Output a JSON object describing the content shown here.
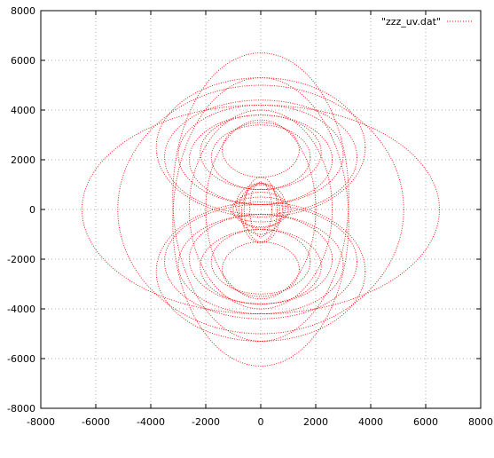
{
  "chart_data": {
    "type": "scatter",
    "title": "",
    "xlabel": "",
    "ylabel": "",
    "xlim": [
      -8000,
      8000
    ],
    "ylim": [
      -8000,
      8000
    ],
    "x_ticks": [
      -8000,
      -6000,
      -4000,
      -2000,
      0,
      2000,
      4000,
      6000,
      8000
    ],
    "y_ticks": [
      -8000,
      -6000,
      -4000,
      -2000,
      0,
      2000,
      4000,
      6000,
      8000
    ],
    "x_tick_labels": [
      "-8000",
      "-6000",
      "-4000",
      "-2000",
      "0",
      "2000",
      "4000",
      "6000",
      "8000"
    ],
    "y_tick_labels": [
      "-8000",
      "-6000",
      "-4000",
      "-2000",
      "0",
      "2000",
      "4000",
      "6000",
      "8000"
    ],
    "grid": true,
    "legend_position": "top-right",
    "series": [
      {
        "name": "\"zzz_uv.dat\"",
        "color": "#ff0000",
        "marker": "dot",
        "arcs": [
          {
            "cx": 0,
            "cy": 0,
            "rx": 800,
            "ry": 1000
          },
          {
            "cx": 0,
            "cy": 0,
            "rx": 600,
            "ry": 1300
          },
          {
            "cx": 0,
            "cy": 0,
            "rx": 1000,
            "ry": 700
          },
          {
            "cx": 0,
            "cy": -150,
            "rx": 700,
            "ry": 1200
          },
          {
            "cx": 0,
            "cy": 150,
            "rx": 900,
            "ry": 900
          },
          {
            "cx": 0,
            "cy": 0,
            "rx": 400,
            "ry": 1100
          },
          {
            "cx": 0,
            "cy": 0,
            "rx": 1100,
            "ry": 500
          },
          {
            "cx": 0,
            "cy": 2100,
            "rx": 3500,
            "ry": 2300
          },
          {
            "cx": 0,
            "cy": 2200,
            "rx": 3000,
            "ry": 2000
          },
          {
            "cx": 0,
            "cy": 2000,
            "rx": 2600,
            "ry": 1800
          },
          {
            "cx": 0,
            "cy": 2300,
            "rx": 2200,
            "ry": 1500
          },
          {
            "cx": 0,
            "cy": 2100,
            "rx": 1800,
            "ry": 1300
          },
          {
            "cx": 0,
            "cy": 2400,
            "rx": 1400,
            "ry": 1100
          },
          {
            "cx": 0,
            "cy": 2500,
            "rx": 3800,
            "ry": 2800
          },
          {
            "cx": 0,
            "cy": -2100,
            "rx": 3500,
            "ry": 2300
          },
          {
            "cx": 0,
            "cy": -2200,
            "rx": 3000,
            "ry": 2000
          },
          {
            "cx": 0,
            "cy": -2000,
            "rx": 2600,
            "ry": 1800
          },
          {
            "cx": 0,
            "cy": -2300,
            "rx": 2200,
            "ry": 1500
          },
          {
            "cx": 0,
            "cy": -2100,
            "rx": 1800,
            "ry": 1300
          },
          {
            "cx": 0,
            "cy": -2400,
            "rx": 1400,
            "ry": 1100
          },
          {
            "cx": 0,
            "cy": -2500,
            "rx": 3800,
            "ry": 2800
          },
          {
            "cx": 0,
            "cy": 0,
            "rx": 6500,
            "ry": 4200
          },
          {
            "cx": 0,
            "cy": 0,
            "rx": 5200,
            "ry": 5000
          },
          {
            "cx": 0,
            "cy": 500,
            "rx": 3200,
            "ry": 5800
          },
          {
            "cx": 0,
            "cy": -500,
            "rx": 3200,
            "ry": 5800
          },
          {
            "cx": 0,
            "cy": 0,
            "rx": 2600,
            "ry": 4000
          },
          {
            "cx": 0,
            "cy": 0,
            "rx": 2000,
            "ry": 3600
          }
        ]
      }
    ]
  }
}
